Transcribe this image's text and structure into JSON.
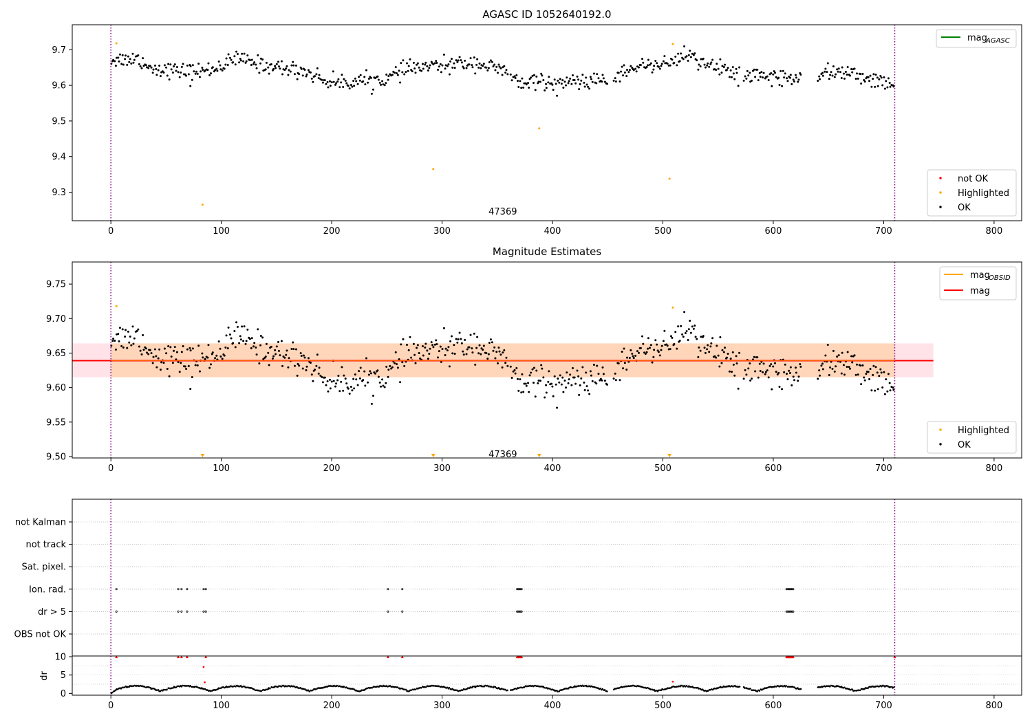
{
  "chart_data": [
    {
      "type": "scatter",
      "title": "AGASC ID 1052640192.0",
      "xlim": [
        -35,
        825
      ],
      "ylim": [
        9.22,
        9.77
      ],
      "x_ticks": [
        0,
        100,
        200,
        300,
        400,
        500,
        600,
        700,
        800
      ],
      "y_ticks": [
        9.3,
        9.4,
        9.5,
        9.6,
        9.7
      ],
      "vlines": [
        0,
        710
      ],
      "annotation": {
        "text": "47369",
        "x": 355,
        "y": 9.245
      },
      "legend_lines": [
        {
          "label": "mag",
          "sub": "AGASC",
          "color": "#008000"
        }
      ],
      "legend_points": [
        {
          "label": "not OK",
          "color": "#ff0000"
        },
        {
          "label": "Highlighted",
          "color": "#ffa500"
        },
        {
          "label": "OK",
          "color": "#000000"
        }
      ],
      "series": [
        {
          "name": "OK",
          "color": "#000000",
          "n_points": 700,
          "x_range": [
            0,
            710
          ],
          "typical_range": [
            9.58,
            9.7
          ]
        },
        {
          "name": "Highlighted",
          "color": "#ffa500",
          "points": [
            [
              5,
              9.718
            ],
            [
              83,
              9.265
            ],
            [
              292,
              9.365
            ],
            [
              388,
              9.479
            ],
            [
              506,
              9.338
            ],
            [
              509,
              9.716
            ]
          ]
        }
      ]
    },
    {
      "type": "scatter",
      "title": "Magnitude Estimates",
      "xlim": [
        -35,
        825
      ],
      "ylim": [
        9.498,
        9.782
      ],
      "x_ticks": [
        0,
        100,
        200,
        300,
        400,
        500,
        600,
        700,
        800
      ],
      "y_ticks": [
        9.5,
        9.55,
        9.6,
        9.65,
        9.7,
        9.75
      ],
      "vlines": [
        0,
        710
      ],
      "annotation": {
        "text": "47369",
        "x": 355,
        "y": 9.503
      },
      "mag": 9.639,
      "mag_band": [
        9.615,
        9.664
      ],
      "obsid_band": {
        "x": [
          0,
          710
        ],
        "y": [
          9.615,
          9.664
        ]
      },
      "legend_lines": [
        {
          "label": "mag",
          "sub": "OBSID",
          "color": "#ffa500"
        },
        {
          "label": "mag",
          "sub": "",
          "color": "#ff0000"
        }
      ],
      "legend_points": [
        {
          "label": "Highlighted",
          "color": "#ffa500"
        },
        {
          "label": "OK",
          "color": "#000000"
        }
      ],
      "series": [
        {
          "name": "OK",
          "color": "#000000",
          "n_points": 700,
          "x_range": [
            0,
            710
          ],
          "typical_range": [
            9.58,
            9.7
          ]
        },
        {
          "name": "Highlighted",
          "color": "#ffa500",
          "points": [
            [
              5,
              9.718
            ],
            [
              509,
              9.716
            ]
          ]
        },
        {
          "name": "Highlighted (below range)",
          "color": "#ffa500",
          "marker": "triangle-down",
          "points": [
            [
              83,
              9.5
            ],
            [
              292,
              9.5
            ],
            [
              388,
              9.5
            ],
            [
              506,
              9.5
            ]
          ]
        }
      ]
    },
    {
      "type": "scatter",
      "title": "",
      "xlim": [
        -35,
        825
      ],
      "x_ticks": [
        0,
        100,
        200,
        300,
        400,
        500,
        600,
        700,
        800
      ],
      "vlines": [
        0,
        710
      ],
      "categories": [
        "not Kalman",
        "not track",
        "Sat. pixel.",
        "Ion. rad.",
        "dr > 5",
        "OBS not OK"
      ],
      "flag_x": [
        5,
        61,
        64,
        69,
        84,
        86,
        251,
        264,
        368,
        369,
        370,
        371,
        372,
        612,
        613,
        614,
        615,
        616,
        617,
        618
      ],
      "flag_categories": [
        "Ion. rad.",
        "dr > 5"
      ]
    },
    {
      "type": "scatter",
      "title": "",
      "ylabel": "dr",
      "xlim": [
        -35,
        825
      ],
      "ylim": [
        -0.5,
        10.2
      ],
      "x_ticks": [
        0,
        100,
        200,
        300,
        400,
        500,
        600,
        700,
        800
      ],
      "y_ticks": [
        0,
        5,
        10
      ],
      "vlines": [
        0,
        710
      ],
      "series": [
        {
          "name": "dr",
          "color": "#000000",
          "n_points": 700,
          "x_range": [
            0,
            710
          ],
          "typical_range": [
            0.2,
            2.8
          ]
        },
        {
          "name": "dr > 5",
          "color": "#ff0000",
          "marker": "triangle-up",
          "points": [
            [
              5,
              10
            ],
            [
              61,
              10
            ],
            [
              64,
              10
            ],
            [
              69,
              10
            ],
            [
              86,
              10
            ],
            [
              251,
              10
            ],
            [
              264,
              10
            ],
            [
              368,
              10
            ],
            [
              369,
              10
            ],
            [
              370,
              10
            ],
            [
              371,
              10
            ],
            [
              372,
              10
            ],
            [
              612,
              10
            ],
            [
              613,
              10
            ],
            [
              614,
              10
            ],
            [
              615,
              10
            ],
            [
              616,
              10
            ],
            [
              617,
              10
            ],
            [
              618,
              10
            ],
            [
              710,
              10
            ]
          ]
        },
        {
          "name": "dr outliers",
          "color": "#ff0000",
          "points": [
            [
              84,
              7.2
            ],
            [
              85,
              3
            ],
            [
              509,
              3.2
            ]
          ]
        }
      ]
    }
  ]
}
